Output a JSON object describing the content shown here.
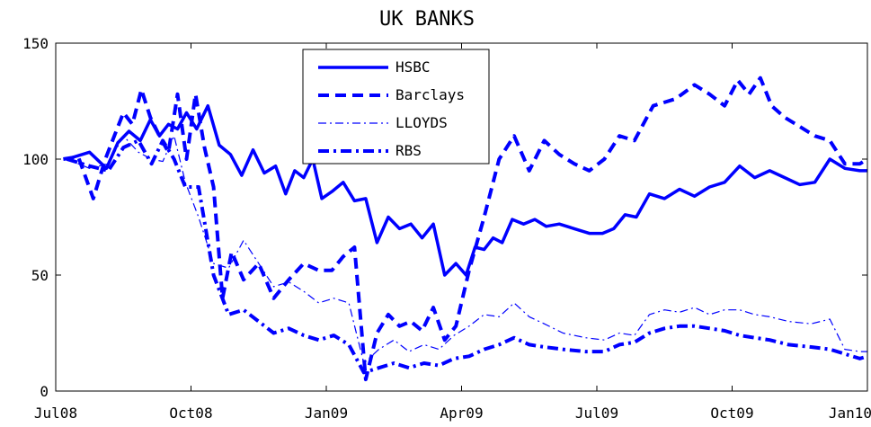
{
  "chart_data": {
    "type": "line",
    "title": "UK BANKS",
    "xlabel": "",
    "ylabel": "",
    "x_ticks": [
      "Jul08",
      "Oct08",
      "Jan09",
      "Apr09",
      "Jul09",
      "Oct09",
      "Jan10"
    ],
    "x_start": "Jul08",
    "x_end": "Jan10",
    "ylim": [
      0,
      150
    ],
    "y_ticks": [
      0,
      50,
      100,
      150
    ],
    "grid": false,
    "legend_position": "top-center",
    "color": "#0000ff",
    "series": [
      {
        "name": "HSBC",
        "style": "solid",
        "points": [
          [
            "Jul08",
            100
          ],
          [
            "Jul08",
            103
          ],
          [
            "Aug08",
            96
          ],
          [
            "Aug08",
            107
          ],
          [
            "Aug08",
            112
          ],
          [
            "Aug08",
            108
          ],
          [
            "Sep08",
            117
          ],
          [
            "Sep08",
            110
          ],
          [
            "Sep08",
            115
          ],
          [
            "Sep08",
            113
          ],
          [
            "Sep08",
            120
          ],
          [
            "Oct08",
            113
          ],
          [
            "Oct08",
            123
          ],
          [
            "Oct08",
            106
          ],
          [
            "Oct08",
            102
          ],
          [
            "Nov08",
            93
          ],
          [
            "Nov08",
            104
          ],
          [
            "Nov08",
            94
          ],
          [
            "Nov08",
            97
          ],
          [
            "Dec08",
            85
          ],
          [
            "Dec08",
            95
          ],
          [
            "Dec08",
            92
          ],
          [
            "Dec08",
            100
          ],
          [
            "Dec08",
            83
          ],
          [
            "Jan09",
            86
          ],
          [
            "Jan09",
            90
          ],
          [
            "Jan09",
            82
          ],
          [
            "Jan09",
            83
          ],
          [
            "Feb09",
            64
          ],
          [
            "Feb09",
            75
          ],
          [
            "Feb09",
            70
          ],
          [
            "Feb09",
            72
          ],
          [
            "Mar09",
            66
          ],
          [
            "Mar09",
            72
          ],
          [
            "Mar09",
            50
          ],
          [
            "Mar09",
            55
          ],
          [
            "Apr09",
            50
          ],
          [
            "Apr09",
            62
          ],
          [
            "Apr09",
            61
          ],
          [
            "Apr09",
            66
          ],
          [
            "Apr09",
            64
          ],
          [
            "May09",
            74
          ],
          [
            "May09",
            72
          ],
          [
            "May09",
            74
          ],
          [
            "May09",
            71
          ],
          [
            "Jun09",
            72
          ],
          [
            "Jun09",
            70
          ],
          [
            "Jun09",
            68
          ],
          [
            "Jul09",
            68
          ],
          [
            "Jul09",
            70
          ],
          [
            "Jul09",
            76
          ],
          [
            "Jul09",
            75
          ],
          [
            "Aug09",
            85
          ],
          [
            "Aug09",
            83
          ],
          [
            "Aug09",
            87
          ],
          [
            "Sep09",
            84
          ],
          [
            "Sep09",
            88
          ],
          [
            "Sep09",
            90
          ],
          [
            "Oct09",
            97
          ],
          [
            "Oct09",
            92
          ],
          [
            "Oct09",
            95
          ],
          [
            "Nov09",
            92
          ],
          [
            "Nov09",
            89
          ],
          [
            "Nov09",
            90
          ],
          [
            "Dec09",
            100
          ],
          [
            "Dec09",
            96
          ],
          [
            "Dec09",
            95
          ],
          [
            "Jan10",
            95
          ]
        ]
      },
      {
        "name": "Barclays",
        "style": "dashed",
        "points": [
          [
            "Jul08",
            100
          ],
          [
            "Jul08",
            101
          ],
          [
            "Jul08",
            83
          ],
          [
            "Aug08",
            100
          ],
          [
            "Aug08",
            110
          ],
          [
            "Aug08",
            120
          ],
          [
            "Aug08",
            115
          ],
          [
            "Aug08",
            130
          ],
          [
            "Sep08",
            118
          ],
          [
            "Sep08",
            110
          ],
          [
            "Sep08",
            103
          ],
          [
            "Sep08",
            128
          ],
          [
            "Sep08",
            100
          ],
          [
            "Oct08",
            128
          ],
          [
            "Oct08",
            105
          ],
          [
            "Oct08",
            88
          ],
          [
            "Oct08",
            40
          ],
          [
            "Oct08",
            60
          ],
          [
            "Nov08",
            48
          ],
          [
            "Nov08",
            55
          ],
          [
            "Nov08",
            40
          ],
          [
            "Dec08",
            48
          ],
          [
            "Dec08",
            55
          ],
          [
            "Dec08",
            52
          ],
          [
            "Jan09",
            52
          ],
          [
            "Jan09",
            58
          ],
          [
            "Jan09",
            62
          ],
          [
            "Jan09",
            5
          ],
          [
            "Feb09",
            25
          ],
          [
            "Feb09",
            33
          ],
          [
            "Feb09",
            28
          ],
          [
            "Feb09",
            30
          ],
          [
            "Mar09",
            26
          ],
          [
            "Mar09",
            36
          ],
          [
            "Mar09",
            22
          ],
          [
            "Mar09",
            28
          ],
          [
            "Apr09",
            52
          ],
          [
            "Apr09",
            75
          ],
          [
            "Apr09",
            100
          ],
          [
            "May09",
            110
          ],
          [
            "May09",
            95
          ],
          [
            "May09",
            108
          ],
          [
            "Jun09",
            102
          ],
          [
            "Jun09",
            98
          ],
          [
            "Jun09",
            95
          ],
          [
            "Jul09",
            100
          ],
          [
            "Jul09",
            110
          ],
          [
            "Jul09",
            108
          ],
          [
            "Aug09",
            123
          ],
          [
            "Aug09",
            126
          ],
          [
            "Sep09",
            132
          ],
          [
            "Sep09",
            128
          ],
          [
            "Sep09",
            123
          ],
          [
            "Oct09",
            134
          ],
          [
            "Oct09",
            128
          ],
          [
            "Oct09",
            135
          ],
          [
            "Oct09",
            123
          ],
          [
            "Nov09",
            118
          ],
          [
            "Nov09",
            114
          ],
          [
            "Nov09",
            110
          ],
          [
            "Dec09",
            108
          ],
          [
            "Dec09",
            98
          ],
          [
            "Dec09",
            98
          ],
          [
            "Jan10",
            100
          ]
        ]
      },
      {
        "name": "LLOYDS",
        "style": "dash-dot-thin",
        "points": [
          [
            "Jul08",
            100
          ],
          [
            "Jul08",
            96
          ],
          [
            "Aug08",
            98
          ],
          [
            "Aug08",
            110
          ],
          [
            "Aug08",
            103
          ],
          [
            "Sep08",
            100
          ],
          [
            "Sep08",
            99
          ],
          [
            "Sep08",
            110
          ],
          [
            "Sep08",
            90
          ],
          [
            "Oct08",
            75
          ],
          [
            "Oct08",
            55
          ],
          [
            "Oct08",
            53
          ],
          [
            "Nov08",
            65
          ],
          [
            "Nov08",
            55
          ],
          [
            "Nov08",
            45
          ],
          [
            "Dec08",
            47
          ],
          [
            "Dec08",
            43
          ],
          [
            "Dec08",
            38
          ],
          [
            "Jan09",
            40
          ],
          [
            "Jan09",
            38
          ],
          [
            "Jan09",
            12
          ],
          [
            "Feb09",
            18
          ],
          [
            "Feb09",
            22
          ],
          [
            "Feb09",
            17
          ],
          [
            "Mar09",
            20
          ],
          [
            "Mar09",
            18
          ],
          [
            "Mar09",
            24
          ],
          [
            "Apr09",
            28
          ],
          [
            "Apr09",
            33
          ],
          [
            "Apr09",
            32
          ],
          [
            "May09",
            38
          ],
          [
            "May09",
            32
          ],
          [
            "May09",
            29
          ],
          [
            "Jun09",
            25
          ],
          [
            "Jun09",
            23
          ],
          [
            "Jul09",
            22
          ],
          [
            "Jul09",
            25
          ],
          [
            "Jul09",
            24
          ],
          [
            "Aug09",
            33
          ],
          [
            "Aug09",
            35
          ],
          [
            "Aug09",
            34
          ],
          [
            "Sep09",
            36
          ],
          [
            "Sep09",
            33
          ],
          [
            "Sep09",
            35
          ],
          [
            "Oct09",
            35
          ],
          [
            "Oct09",
            33
          ],
          [
            "Oct09",
            32
          ],
          [
            "Nov09",
            30
          ],
          [
            "Nov09",
            29
          ],
          [
            "Dec09",
            31
          ],
          [
            "Dec09",
            18
          ],
          [
            "Dec09",
            17
          ],
          [
            "Jan10",
            17
          ]
        ]
      },
      {
        "name": "RBS",
        "style": "dash-dot",
        "points": [
          [
            "Jul08",
            100
          ],
          [
            "Jul08",
            97
          ],
          [
            "Aug08",
            95
          ],
          [
            "Aug08",
            105
          ],
          [
            "Aug08",
            108
          ],
          [
            "Sep08",
            98
          ],
          [
            "Sep08",
            108
          ],
          [
            "Sep08",
            100
          ],
          [
            "Sep08",
            88
          ],
          [
            "Oct08",
            88
          ],
          [
            "Oct08",
            50
          ],
          [
            "Oct08",
            33
          ],
          [
            "Nov08",
            35
          ],
          [
            "Nov08",
            30
          ],
          [
            "Nov08",
            25
          ],
          [
            "Dec08",
            27
          ],
          [
            "Dec08",
            24
          ],
          [
            "Dec08",
            22
          ],
          [
            "Jan09",
            24
          ],
          [
            "Jan09",
            20
          ],
          [
            "Jan09",
            8
          ],
          [
            "Feb09",
            10
          ],
          [
            "Feb09",
            12
          ],
          [
            "Feb09",
            10
          ],
          [
            "Mar09",
            12
          ],
          [
            "Mar09",
            11
          ],
          [
            "Mar09",
            14
          ],
          [
            "Apr09",
            15
          ],
          [
            "Apr09",
            18
          ],
          [
            "Apr09",
            20
          ],
          [
            "May09",
            23
          ],
          [
            "May09",
            20
          ],
          [
            "May09",
            19
          ],
          [
            "Jun09",
            18
          ],
          [
            "Jun09",
            17
          ],
          [
            "Jul09",
            17
          ],
          [
            "Jul09",
            20
          ],
          [
            "Jul09",
            21
          ],
          [
            "Aug09",
            25
          ],
          [
            "Aug09",
            27
          ],
          [
            "Aug09",
            28
          ],
          [
            "Sep09",
            28
          ],
          [
            "Sep09",
            27
          ],
          [
            "Sep09",
            26
          ],
          [
            "Oct09",
            24
          ],
          [
            "Oct09",
            23
          ],
          [
            "Oct09",
            22
          ],
          [
            "Nov09",
            20
          ],
          [
            "Nov09",
            19
          ],
          [
            "Dec09",
            18
          ],
          [
            "Dec09",
            16
          ],
          [
            "Dec09",
            14
          ],
          [
            "Jan10",
            15
          ]
        ]
      }
    ]
  }
}
